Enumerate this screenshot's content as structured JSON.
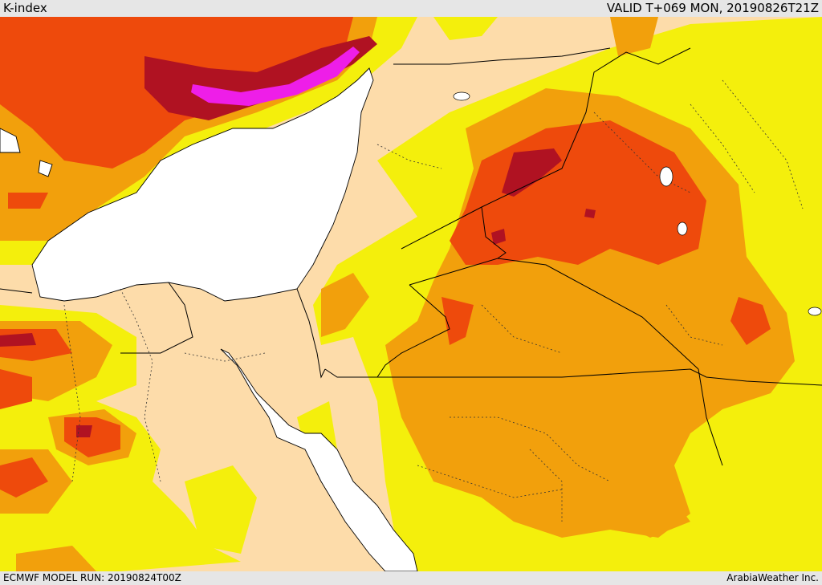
{
  "header": {
    "parameter": "K-index",
    "valid_time": "VALID T+069 MON, 20190826T21Z"
  },
  "footer": {
    "model_run": "ECMWF MODEL RUN: 20190824T00Z",
    "provider": "ArabiaWeather Inc."
  },
  "colors": {
    "background_land": "#fddcaa",
    "sea": "#ffffff",
    "level_1": "#f4ef0c",
    "level_2": "#f2a00c",
    "level_3": "#ee4a0c",
    "level_4": "#b01222",
    "level_5": "#ee1ee8",
    "borders": "#000000"
  }
}
